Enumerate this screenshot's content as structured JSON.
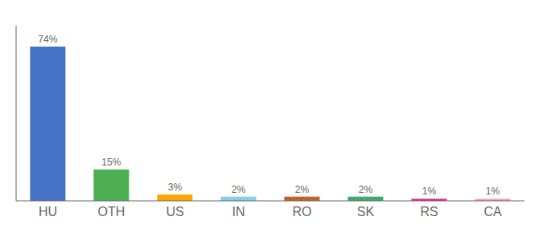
{
  "chart_data": {
    "type": "bar",
    "categories": [
      "HU",
      "OTH",
      "US",
      "IN",
      "RO",
      "SK",
      "RS",
      "CA"
    ],
    "values": [
      74,
      15,
      3,
      2,
      2,
      2,
      1,
      1
    ],
    "value_labels": [
      "74%",
      "15%",
      "3%",
      "2%",
      "2%",
      "2%",
      "1%",
      "1%"
    ],
    "colors": [
      "#4472C4",
      "#4CAF50",
      "#FFA500",
      "#87CEEB",
      "#C0622A",
      "#3DAA6E",
      "#E91E8C",
      "#F4A0B0"
    ],
    "ylim": [
      0,
      84
    ],
    "data_labels": true,
    "tick_labels": "x",
    "grid": false
  }
}
